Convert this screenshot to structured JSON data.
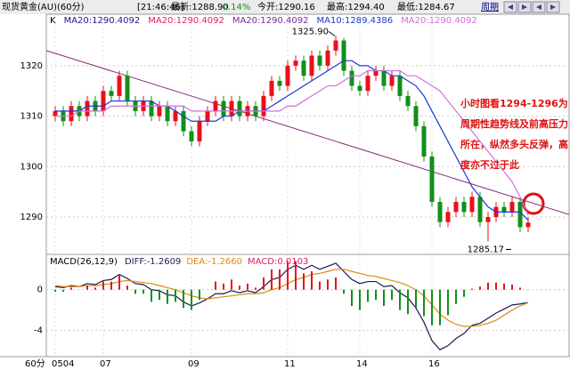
{
  "header": {
    "symbol": "现货黄金(AU)(60分)",
    "time": "[21:46:46]",
    "last": "最新:1288.90",
    "change": "-0.14%",
    "open": "今开:1290.16",
    "high": "最高:1294.40",
    "low": "最低:1284.67",
    "period": "周期"
  },
  "chart_data": [
    {
      "type": "candlestick",
      "legend": [
        {
          "name": "K",
          "color": "#000000"
        },
        {
          "name": "MA20:1290.4092",
          "color": "#1a1a8c"
        },
        {
          "name": "MA20:1290.4092",
          "color": "#e0206a"
        },
        {
          "name": "MA20:1290.4092",
          "color": "#7a2a9a"
        },
        {
          "name": "MA10:1289.4386",
          "color": "#1a3ad0"
        },
        {
          "name": "MA20:1290.4092",
          "color": "#d070d8"
        }
      ],
      "x_label": "60分",
      "categories": [
        "0504",
        null,
        null,
        null,
        null,
        null,
        "07",
        null,
        null,
        null,
        null,
        null,
        null,
        null,
        null,
        null,
        null,
        "09",
        null,
        null,
        null,
        null,
        null,
        null,
        null,
        null,
        null,
        null,
        null,
        "11",
        null,
        null,
        null,
        null,
        null,
        null,
        null,
        null,
        "14",
        null,
        null,
        null,
        null,
        null,
        null,
        null,
        null,
        "16",
        null,
        null,
        null,
        null,
        null,
        null,
        null,
        null,
        null,
        null,
        null,
        null
      ],
      "open": [
        1310,
        1311,
        1309,
        1312,
        1310,
        1313,
        1311,
        1315,
        1314,
        1318,
        1313,
        1311,
        1313,
        1310,
        1312,
        1309,
        1311,
        1307,
        1305,
        1309,
        1311,
        1313,
        1310,
        1313,
        1310,
        1312,
        1310,
        1314,
        1317,
        1316,
        1320,
        1321,
        1318,
        1322,
        1320,
        1323,
        1325,
        1319,
        1316,
        1315,
        1318,
        1319,
        1316,
        1318,
        1314,
        1312,
        1308,
        1302,
        1293,
        1289,
        1291,
        1293,
        1291,
        1294,
        1289,
        1290,
        1292,
        1291,
        1293,
        1288
      ],
      "high": [
        1312,
        1312,
        1313,
        1313,
        1314,
        1314,
        1316,
        1316,
        1319,
        1319,
        1314,
        1314,
        1314,
        1313,
        1313,
        1312,
        1312,
        1308,
        1310,
        1312,
        1314,
        1314,
        1314,
        1314,
        1313,
        1313,
        1315,
        1318,
        1318,
        1321,
        1322,
        1322,
        1323,
        1323,
        1324,
        1325.9,
        1325.5,
        1320,
        1317,
        1319,
        1320,
        1320,
        1319,
        1319,
        1315,
        1313,
        1309,
        1303,
        1294,
        1292,
        1294,
        1294,
        1295,
        1295,
        1291,
        1293,
        1293,
        1294,
        1294,
        1290
      ],
      "low": [
        1309,
        1308,
        1308,
        1309,
        1309,
        1310,
        1310,
        1313,
        1313,
        1312,
        1310,
        1310,
        1309,
        1309,
        1308,
        1308,
        1306,
        1304,
        1304,
        1308,
        1310,
        1309,
        1309,
        1309,
        1309,
        1309,
        1309,
        1313,
        1315,
        1315,
        1319,
        1317,
        1317,
        1319,
        1319,
        1322,
        1318,
        1315,
        1314,
        1314,
        1317,
        1315,
        1315,
        1313,
        1311,
        1307,
        1301,
        1292,
        1288,
        1288,
        1290,
        1290,
        1290,
        1288,
        1285.17,
        1289,
        1290,
        1290,
        1287,
        1287
      ],
      "close": [
        1311,
        1309,
        1312,
        1310,
        1313,
        1311,
        1315,
        1314,
        1318,
        1313,
        1311,
        1313,
        1310,
        1312,
        1309,
        1311,
        1307,
        1305,
        1309,
        1311,
        1313,
        1310,
        1313,
        1310,
        1312,
        1310,
        1314,
        1317,
        1316,
        1320,
        1321,
        1318,
        1322,
        1320,
        1323,
        1325,
        1319,
        1316,
        1315,
        1318,
        1319,
        1316,
        1318,
        1314,
        1312,
        1308,
        1302,
        1293,
        1289,
        1291,
        1293,
        1291,
        1294,
        1289,
        1290,
        1292,
        1291,
        1293,
        1288,
        1288.9
      ],
      "up_color": "#e8101a",
      "down_color": "#10901a",
      "series": [
        {
          "name": "MA10:1289.4386",
          "color": "#1a3ad0",
          "values": [
            1311,
            1311,
            1311,
            1311,
            1312,
            1312,
            1312,
            1313,
            1313,
            1313,
            1313,
            1313,
            1313,
            1312,
            1312,
            1311,
            1310,
            1309,
            1309,
            1309,
            1309,
            1310,
            1310,
            1311,
            1311,
            1311,
            1311,
            1312,
            1313,
            1314,
            1315,
            1316,
            1317,
            1318,
            1319,
            1320,
            1321,
            1321,
            1320,
            1320,
            1319,
            1319,
            1318,
            1318,
            1317,
            1316,
            1314,
            1311,
            1308,
            1305,
            1302,
            1299,
            1296,
            1294,
            1292,
            1291,
            1291,
            1291,
            1291,
            1289.4
          ]
        },
        {
          "name": "MA20:1290.4092",
          "color": "#d070d8",
          "values": [
            1310,
            1310,
            1310,
            1311,
            1311,
            1311,
            1311,
            1312,
            1312,
            1312,
            1312,
            1312,
            1312,
            1312,
            1312,
            1312,
            1312,
            1311,
            1311,
            1311,
            1311,
            1311,
            1311,
            1311,
            1311,
            1311,
            1311,
            1311,
            1311,
            1312,
            1312,
            1313,
            1314,
            1315,
            1316,
            1316,
            1317,
            1318,
            1318,
            1319,
            1319,
            1319,
            1319,
            1319,
            1318,
            1318,
            1317,
            1316,
            1315,
            1313,
            1311,
            1309,
            1307,
            1305,
            1303,
            1301,
            1299,
            1297,
            1294,
            1290.4
          ]
        }
      ],
      "trend_line": {
        "from": 1323,
        "to": 1290.5,
        "color": "#8a2a7a"
      },
      "peak_label": "1325.90",
      "trough_label": "1285.17",
      "annotations": [
        "小时图看1294-1296为",
        "周期性趋势线及前高压力",
        "所在，纵然多头反弹，高",
        "度亦不过于此"
      ],
      "ylim": [
        1282.6,
        1330.2
      ],
      "yticks": [
        1290,
        1300,
        1310,
        1320
      ],
      "grid": true
    },
    {
      "type": "macd",
      "title": "MACD(26,12,9)",
      "series": [
        {
          "name": "DIFF:-1.2609",
          "color": "#1a1a50",
          "kind": "line",
          "values": [
            0.3,
            0.2,
            0.4,
            0.3,
            0.6,
            0.5,
            0.9,
            1.0,
            1.5,
            1.1,
            0.6,
            0.5,
            0.0,
            -0.1,
            -0.5,
            -0.6,
            -1.2,
            -1.6,
            -1.3,
            -0.9,
            -0.4,
            -0.4,
            -0.1,
            -0.3,
            -0.1,
            -0.3,
            0.3,
            1.0,
            1.2,
            2.0,
            2.4,
            2.0,
            2.4,
            2.0,
            2.3,
            2.6,
            1.8,
            1.0,
            0.6,
            0.8,
            0.8,
            0.3,
            0.4,
            -0.3,
            -0.8,
            -1.8,
            -3.2,
            -5.0,
            -5.9,
            -5.5,
            -4.8,
            -4.3,
            -3.5,
            -3.3,
            -2.8,
            -2.3,
            -1.9,
            -1.5,
            -1.4,
            -1.2609
          ]
        },
        {
          "name": "DEA:-1.2660",
          "color": "#e08a10",
          "kind": "line",
          "values": [
            0.4,
            0.3,
            0.3,
            0.3,
            0.4,
            0.4,
            0.5,
            0.6,
            0.8,
            0.9,
            0.8,
            0.7,
            0.6,
            0.4,
            0.2,
            0.0,
            -0.3,
            -0.6,
            -0.8,
            -0.9,
            -0.8,
            -0.7,
            -0.6,
            -0.5,
            -0.4,
            -0.4,
            -0.3,
            0.0,
            0.2,
            0.6,
            1.0,
            1.2,
            1.5,
            1.6,
            1.8,
            2.0,
            2.0,
            1.8,
            1.6,
            1.4,
            1.3,
            1.1,
            0.9,
            0.7,
            0.4,
            0.0,
            -0.6,
            -1.5,
            -2.4,
            -3.0,
            -3.4,
            -3.6,
            -3.6,
            -3.5,
            -3.3,
            -3.0,
            -2.5,
            -2.0,
            -1.6,
            -1.266
          ]
        },
        {
          "name": "MACD:0.0103",
          "color": "#e0206a",
          "kind": "bar",
          "values": [
            -0.2,
            -0.2,
            0.2,
            0,
            0.4,
            0.2,
            0.8,
            0.8,
            1.4,
            0.4,
            -0.4,
            -0.4,
            -1.2,
            -1.0,
            -1.4,
            -1.2,
            -1.8,
            -2.0,
            -1.0,
            0,
            0.8,
            0.6,
            1.0,
            0.4,
            0.6,
            0.2,
            1.2,
            2.0,
            2.0,
            2.8,
            2.8,
            1.6,
            1.8,
            0.8,
            1.0,
            1.2,
            -0.4,
            -1.6,
            -2.0,
            -1.2,
            -1.0,
            -1.6,
            -1.0,
            -2.0,
            -2.4,
            -1.8,
            -2.6,
            -3.5,
            -3.5,
            -2.5,
            -1.4,
            -0.7,
            0.1,
            0.3,
            0.7,
            0.7,
            0.6,
            0.5,
            0.2,
            0.0103
          ]
        }
      ],
      "up_color": "#e8101a",
      "down_color": "#10901a",
      "ylim": [
        -6.58,
        3.47
      ],
      "yticks": [
        0,
        -4
      ],
      "grid": true
    }
  ]
}
